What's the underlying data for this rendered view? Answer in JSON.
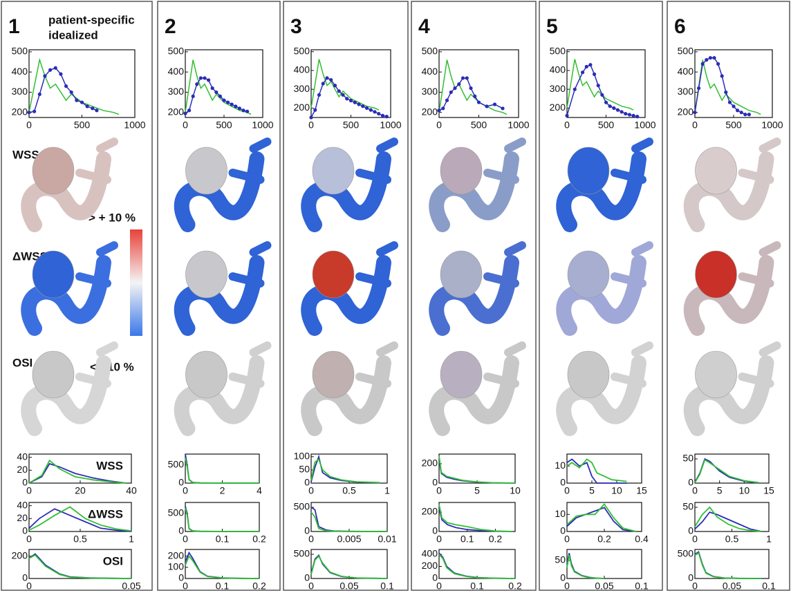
{
  "legend": [
    {
      "name": "patient-specific",
      "color": "#2b2bb8"
    },
    {
      "name": "idealized",
      "color": "#2fbf2f"
    }
  ],
  "colorbar": {
    "top_label": "> + 10 %",
    "bottom_label": "< - 10 %"
  },
  "map_labels": [
    "WSS",
    "ΔWSS",
    "OSI"
  ],
  "hist_labels": [
    "WSS",
    "ΔWSS",
    "OSI"
  ],
  "flow_axes": {
    "xlim": [
      0,
      1000
    ],
    "xticks": [
      0,
      500,
      1000
    ],
    "yticks": [
      200,
      300,
      400,
      500
    ]
  },
  "idealized_flow": {
    "x": [
      0,
      50,
      100,
      150,
      200,
      250,
      300,
      350,
      400,
      450,
      500,
      600,
      700,
      800,
      850
    ],
    "y": [
      200,
      330,
      460,
      380,
      320,
      340,
      300,
      260,
      290,
      270,
      250,
      230,
      210,
      200,
      190
    ]
  },
  "panels": [
    {
      "label": "1",
      "flow": {
        "ylim": [
          175,
          510
        ],
        "x": [
          0,
          50,
          100,
          150,
          200,
          250,
          300,
          350,
          400,
          450,
          500,
          550,
          600,
          640
        ],
        "y": [
          200,
          205,
          290,
          380,
          410,
          420,
          390,
          330,
          300,
          260,
          250,
          230,
          220,
          210
        ]
      },
      "histograms": [
        {
          "xlim": [
            0,
            40
          ],
          "ylim": [
            0,
            45
          ],
          "xticks": [
            0,
            20,
            40
          ],
          "yticks": [
            0,
            20,
            40
          ],
          "x": [
            0,
            5,
            8,
            12,
            18,
            25,
            32,
            38
          ],
          "patient_specific": [
            0,
            10,
            30,
            25,
            15,
            8,
            3,
            0
          ],
          "idealized": [
            0,
            12,
            35,
            22,
            10,
            5,
            2,
            0
          ]
        },
        {
          "xlim": [
            0,
            1
          ],
          "ylim": [
            0,
            45
          ],
          "xticks": [
            0,
            0.5,
            1
          ],
          "yticks": [
            0,
            20,
            40
          ],
          "x": [
            0,
            0.1,
            0.25,
            0.4,
            0.55,
            0.7,
            0.85,
            1
          ],
          "patient_specific": [
            5,
            20,
            35,
            25,
            15,
            5,
            2,
            0
          ],
          "idealized": [
            2,
            10,
            25,
            38,
            20,
            10,
            4,
            1
          ]
        },
        {
          "xlim": [
            0,
            0.05
          ],
          "ylim": [
            0,
            260
          ],
          "xticks": [
            0,
            0.05
          ],
          "yticks": [
            0,
            200
          ],
          "x": [
            0,
            0.003,
            0.008,
            0.015,
            0.02,
            0.03,
            0.04,
            0.05
          ],
          "patient_specific": [
            180,
            220,
            120,
            40,
            15,
            5,
            2,
            0
          ],
          "idealized": [
            180,
            210,
            110,
            35,
            12,
            4,
            1,
            0
          ]
        }
      ]
    },
    {
      "label": "2",
      "flow": {
        "ylim": [
          175,
          510
        ],
        "x": [
          0,
          50,
          100,
          150,
          200,
          250,
          300,
          350,
          400,
          450,
          500,
          550,
          600,
          650,
          700,
          750,
          800
        ],
        "y": [
          195,
          210,
          280,
          340,
          370,
          370,
          360,
          320,
          300,
          280,
          260,
          250,
          240,
          230,
          220,
          210,
          205
        ]
      },
      "histograms": [
        {
          "xlim": [
            0,
            4
          ],
          "ylim": [
            0,
            800
          ],
          "xticks": [
            0,
            2,
            4
          ],
          "yticks": [
            0,
            500
          ],
          "x": [
            0,
            0.1,
            0.2,
            0.4,
            0.8,
            1.5,
            2.5,
            4
          ],
          "patient_specific": [
            800,
            500,
            100,
            20,
            5,
            2,
            0,
            0
          ],
          "idealized": [
            700,
            450,
            90,
            15,
            4,
            1,
            0,
            0
          ]
        },
        {
          "xlim": [
            0,
            0.2
          ],
          "ylim": [
            0,
            800
          ],
          "xticks": [
            0,
            0.1,
            0.2
          ],
          "yticks": [
            0,
            500
          ],
          "x": [
            0,
            0.005,
            0.01,
            0.02,
            0.04,
            0.08,
            0.14,
            0.2
          ],
          "patient_specific": [
            700,
            500,
            80,
            20,
            5,
            2,
            0,
            0
          ],
          "idealized": [
            650,
            450,
            70,
            15,
            4,
            1,
            0,
            0
          ]
        },
        {
          "xlim": [
            0,
            0.2
          ],
          "ylim": [
            0,
            260
          ],
          "xticks": [
            0,
            0.1,
            0.2
          ],
          "yticks": [
            0,
            100,
            200
          ],
          "x": [
            0,
            0.01,
            0.02,
            0.04,
            0.06,
            0.1,
            0.15,
            0.2
          ],
          "patient_specific": [
            150,
            230,
            180,
            60,
            20,
            5,
            1,
            0
          ],
          "idealized": [
            120,
            200,
            160,
            55,
            18,
            4,
            1,
            0
          ]
        }
      ]
    },
    {
      "label": "3",
      "flow": {
        "ylim": [
          150,
          510
        ],
        "x": [
          0,
          50,
          100,
          150,
          200,
          250,
          300,
          350,
          400,
          450,
          500,
          550,
          600,
          650,
          700,
          750,
          800,
          850,
          900,
          950
        ],
        "y": [
          150,
          190,
          270,
          330,
          360,
          350,
          320,
          290,
          270,
          250,
          240,
          230,
          220,
          210,
          200,
          190,
          180,
          170,
          160,
          155
        ]
      },
      "histograms": [
        {
          "xlim": [
            0,
            1
          ],
          "ylim": [
            0,
            110
          ],
          "xticks": [
            0,
            0.5,
            1
          ],
          "yticks": [
            0,
            50,
            100
          ],
          "x": [
            0,
            0.05,
            0.1,
            0.15,
            0.25,
            0.4,
            0.6,
            0.9
          ],
          "patient_specific": [
            5,
            60,
            100,
            40,
            20,
            10,
            4,
            1
          ],
          "idealized": [
            10,
            80,
            90,
            50,
            25,
            12,
            5,
            2
          ]
        },
        {
          "xlim": [
            0,
            0.01
          ],
          "ylim": [
            0,
            600
          ],
          "xticks": [
            0,
            0.005,
            0.01
          ],
          "yticks": [
            0,
            500
          ],
          "x": [
            0,
            0.0005,
            0.001,
            0.002,
            0.003,
            0.005,
            0.007,
            0.01
          ],
          "patient_specific": [
            500,
            450,
            100,
            30,
            10,
            3,
            1,
            0
          ],
          "idealized": [
            400,
            300,
            60,
            15,
            5,
            2,
            0,
            0
          ]
        },
        {
          "xlim": [
            0,
            0.1
          ],
          "ylim": [
            0,
            600
          ],
          "xticks": [
            0,
            0.05,
            0.1
          ],
          "yticks": [
            0,
            500
          ],
          "x": [
            0,
            0.005,
            0.01,
            0.015,
            0.025,
            0.04,
            0.06,
            0.1
          ],
          "patient_specific": [
            100,
            400,
            480,
            300,
            120,
            40,
            10,
            0
          ],
          "idealized": [
            80,
            380,
            460,
            320,
            130,
            45,
            12,
            0
          ]
        }
      ]
    },
    {
      "label": "4",
      "flow": {
        "ylim": [
          175,
          510
        ],
        "x": [
          0,
          50,
          100,
          150,
          200,
          250,
          300,
          350,
          400,
          450,
          500,
          600,
          700,
          800
        ],
        "y": [
          210,
          220,
          260,
          300,
          320,
          340,
          370,
          370,
          320,
          280,
          250,
          230,
          240,
          220
        ]
      },
      "histograms": [
        {
          "xlim": [
            0,
            10
          ],
          "ylim": [
            0,
            300
          ],
          "xticks": [
            0,
            5,
            10
          ],
          "yticks": [
            0,
            200
          ],
          "x": [
            0,
            0.3,
            1,
            2,
            3,
            5,
            7,
            10
          ],
          "patient_specific": [
            250,
            100,
            60,
            40,
            25,
            10,
            3,
            0
          ],
          "idealized": [
            280,
            110,
            70,
            50,
            30,
            12,
            4,
            0
          ]
        },
        {
          "xlim": [
            0,
            0.27
          ],
          "ylim": [
            0,
            300
          ],
          "xticks": [
            0,
            0.1,
            0.2
          ],
          "yticks": [
            0,
            200
          ],
          "x": [
            0,
            0.01,
            0.03,
            0.06,
            0.1,
            0.15,
            0.2,
            0.26
          ],
          "patient_specific": [
            250,
            120,
            70,
            40,
            20,
            8,
            3,
            0
          ],
          "idealized": [
            280,
            140,
            90,
            70,
            50,
            20,
            5,
            0
          ]
        },
        {
          "xlim": [
            0,
            0.2
          ],
          "ylim": [
            0,
            480
          ],
          "xticks": [
            0,
            0.1,
            0.2
          ],
          "yticks": [
            0,
            200,
            400
          ],
          "x": [
            0,
            0.01,
            0.02,
            0.04,
            0.07,
            0.1,
            0.15,
            0.2
          ],
          "patient_specific": [
            420,
            350,
            200,
            90,
            40,
            15,
            5,
            0
          ],
          "idealized": [
            400,
            330,
            180,
            80,
            35,
            12,
            4,
            0
          ]
        }
      ]
    },
    {
      "label": "5",
      "flow": {
        "ylim": [
          150,
          510
        ],
        "x": [
          0,
          100,
          200,
          250,
          300,
          350,
          400,
          450,
          500,
          550,
          600,
          650,
          700,
          750,
          800,
          850,
          900
        ],
        "y": [
          160,
          300,
          390,
          420,
          430,
          380,
          320,
          270,
          230,
          210,
          200,
          190,
          180,
          170,
          165,
          160,
          155
        ]
      },
      "histograms": [
        {
          "xlim": [
            0,
            15
          ],
          "ylim": [
            0,
            17
          ],
          "xticks": [
            0,
            5,
            10,
            15
          ],
          "yticks": [
            0,
            10
          ],
          "x": [
            0,
            1,
            2.5,
            4,
            5,
            6,
            9,
            12
          ],
          "patient_specific": [
            12,
            14,
            10,
            12,
            4,
            0,
            0,
            0
          ],
          "idealized": [
            10,
            12,
            9,
            14,
            12,
            6,
            2,
            1
          ]
        },
        {
          "xlim": [
            0,
            0.4
          ],
          "ylim": [
            0,
            17
          ],
          "xticks": [
            0,
            0.2,
            0.4
          ],
          "yticks": [
            0,
            10
          ],
          "x": [
            0,
            0.05,
            0.1,
            0.15,
            0.2,
            0.25,
            0.3,
            0.37
          ],
          "patient_specific": [
            3,
            8,
            10,
            12,
            14,
            6,
            1,
            0
          ],
          "idealized": [
            4,
            9,
            10,
            10,
            16,
            8,
            2,
            0
          ]
        },
        {
          "xlim": [
            0,
            0.1
          ],
          "ylim": [
            0,
            80
          ],
          "xticks": [
            0,
            0.05,
            0.1
          ],
          "yticks": [
            0,
            50
          ],
          "x": [
            0,
            0.003,
            0.006,
            0.01,
            0.02,
            0.03,
            0.04,
            0.05
          ],
          "patient_specific": [
            40,
            70,
            40,
            20,
            8,
            3,
            1,
            0
          ],
          "idealized": [
            30,
            65,
            35,
            18,
            7,
            2,
            1,
            0
          ]
        }
      ]
    },
    {
      "label": "6",
      "flow": {
        "ylim": [
          175,
          510
        ],
        "x": [
          0,
          50,
          100,
          150,
          200,
          250,
          300,
          350,
          400,
          450,
          500,
          550,
          600,
          650,
          700
        ],
        "y": [
          200,
          320,
          440,
          460,
          470,
          470,
          440,
          380,
          300,
          250,
          230,
          210,
          200,
          190,
          190
        ]
      },
      "histograms": [
        {
          "xlim": [
            0,
            15
          ],
          "ylim": [
            0,
            60
          ],
          "xticks": [
            0,
            5,
            10,
            15
          ],
          "yticks": [
            0,
            50
          ],
          "x": [
            0,
            1,
            2,
            3,
            5,
            7,
            10,
            13
          ],
          "patient_specific": [
            2,
            20,
            50,
            45,
            25,
            12,
            4,
            0
          ],
          "idealized": [
            1,
            18,
            48,
            42,
            28,
            14,
            5,
            1
          ]
        },
        {
          "xlim": [
            0,
            1
          ],
          "ylim": [
            0,
            60
          ],
          "xticks": [
            0,
            0.5,
            1
          ],
          "yticks": [
            0,
            50
          ],
          "x": [
            0,
            0.1,
            0.2,
            0.3,
            0.45,
            0.6,
            0.75,
            0.9
          ],
          "patient_specific": [
            5,
            20,
            40,
            35,
            25,
            15,
            5,
            0
          ],
          "idealized": [
            10,
            35,
            50,
            30,
            15,
            6,
            2,
            0
          ]
        },
        {
          "xlim": [
            0,
            0.1
          ],
          "ylim": [
            0,
            600
          ],
          "xticks": [
            0,
            0.05,
            0.1
          ],
          "yticks": [
            0,
            500
          ],
          "x": [
            0,
            0.005,
            0.01,
            0.015,
            0.025,
            0.04,
            0.06,
            0.09
          ],
          "patient_specific": [
            500,
            550,
            300,
            120,
            40,
            10,
            3,
            0
          ],
          "idealized": [
            480,
            530,
            280,
            110,
            35,
            8,
            2,
            0
          ]
        }
      ]
    }
  ]
}
